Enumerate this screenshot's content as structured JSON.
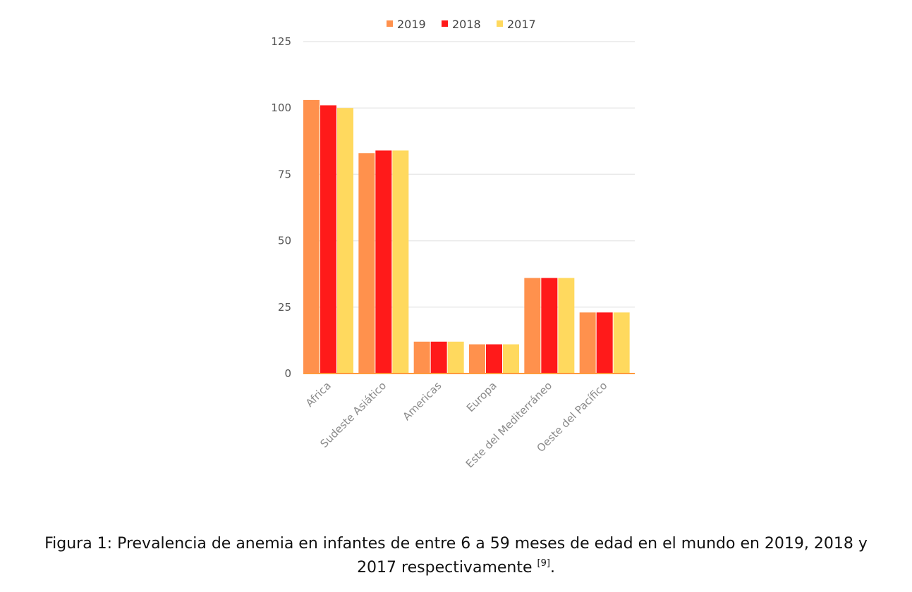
{
  "chart_data": {
    "type": "bar",
    "categories": [
      "Africa",
      "Sudeste Asiático",
      "Americas",
      "Europa",
      "Este del Mediterráneo",
      "Oeste del Pacífico"
    ],
    "series": [
      {
        "name": "2019",
        "color": "#ff914d",
        "values": [
          103,
          83,
          12,
          11,
          36,
          23
        ]
      },
      {
        "name": "2018",
        "color": "#ff1a1a",
        "values": [
          101,
          84,
          12,
          11,
          36,
          23
        ]
      },
      {
        "name": "2017",
        "color": "#ffd95e",
        "values": [
          100,
          84,
          12,
          11,
          36,
          23
        ]
      }
    ],
    "ylim": [
      0,
      125
    ],
    "yticks": [
      0,
      25,
      50,
      75,
      100,
      125
    ],
    "grid": true,
    "legend": "top"
  },
  "caption": {
    "line1": "Figura 1: Prevalencia de anemia en infantes de entre 6 a 59 meses de edad en el mundo en 2019, 2018 y",
    "line2": "2017 respectivamente",
    "ref": "[9]",
    "end": "."
  }
}
